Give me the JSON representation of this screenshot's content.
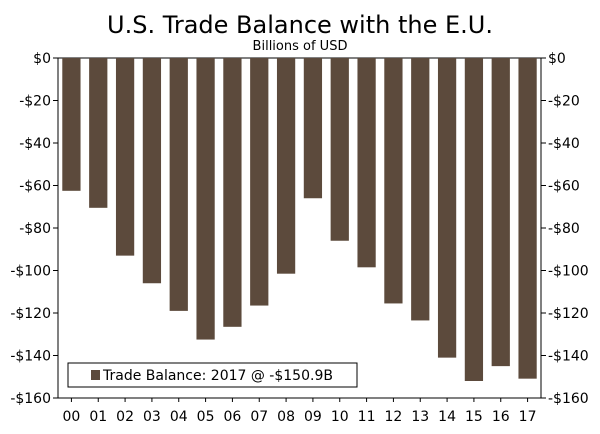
{
  "chart_data": {
    "type": "bar",
    "title": "U.S. Trade Balance with the E.U.",
    "subtitle": "Billions of USD",
    "xlabel": "",
    "ylabel": "",
    "ylim": [
      -160,
      0
    ],
    "ytick_values": [
      0,
      -20,
      -40,
      -60,
      -80,
      -100,
      -120,
      -140,
      -160
    ],
    "ytick_labels": [
      "$0",
      "-$20",
      "-$40",
      "-$60",
      "-$80",
      "-$100",
      "-$120",
      "-$140",
      "-$160"
    ],
    "categories": [
      "00",
      "01",
      "02",
      "03",
      "04",
      "05",
      "06",
      "07",
      "08",
      "09",
      "10",
      "11",
      "12",
      "13",
      "14",
      "15",
      "16",
      "17"
    ],
    "series": [
      {
        "name": "Trade Balance",
        "values": [
          -62.5,
          -70.5,
          -93,
          -106,
          -119,
          -132.5,
          -126.5,
          -116.5,
          -101.5,
          -66,
          -86,
          -98.5,
          -115.5,
          -123.5,
          -141,
          -152,
          -145,
          -150.9
        ],
        "color": "#5c4a3c"
      }
    ],
    "legend": {
      "text": "Trade Balance: 2017 @ -$150.9B",
      "position": "bottom-left"
    },
    "grid": false
  }
}
